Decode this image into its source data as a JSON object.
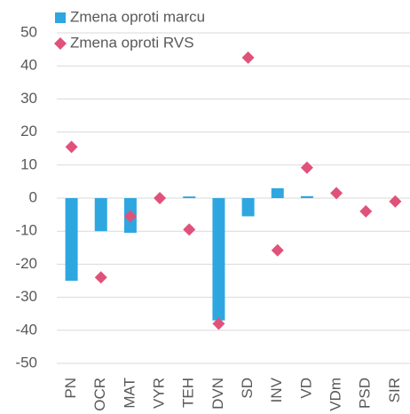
{
  "chart_data": {
    "type": "bar",
    "categories": [
      "PN",
      "OCR",
      "MAT",
      "VYR",
      "TEH",
      "DVN",
      "SD",
      "INV",
      "VD",
      "VDm",
      "PSD",
      "SIR"
    ],
    "series": [
      {
        "name": "Zmena oproti marcu",
        "type": "bar",
        "color": "#2ea7e0",
        "values": [
          -25,
          -10,
          -10.5,
          0,
          0.5,
          -37,
          -5.5,
          3,
          0.6,
          0,
          0,
          0
        ]
      },
      {
        "name": "Zmena oproti RVS",
        "type": "scatter",
        "color": "#e0527a",
        "values": [
          15.5,
          -24,
          -5.5,
          0,
          -9.5,
          -38,
          42.5,
          -15.8,
          9.2,
          1.5,
          -4,
          -1
        ]
      }
    ],
    "ylim": [
      -50,
      50
    ],
    "yticks": [
      -50,
      -40,
      -30,
      -20,
      -10,
      0,
      10,
      20,
      30,
      40,
      50
    ],
    "grid": true,
    "legend": "top-left"
  }
}
